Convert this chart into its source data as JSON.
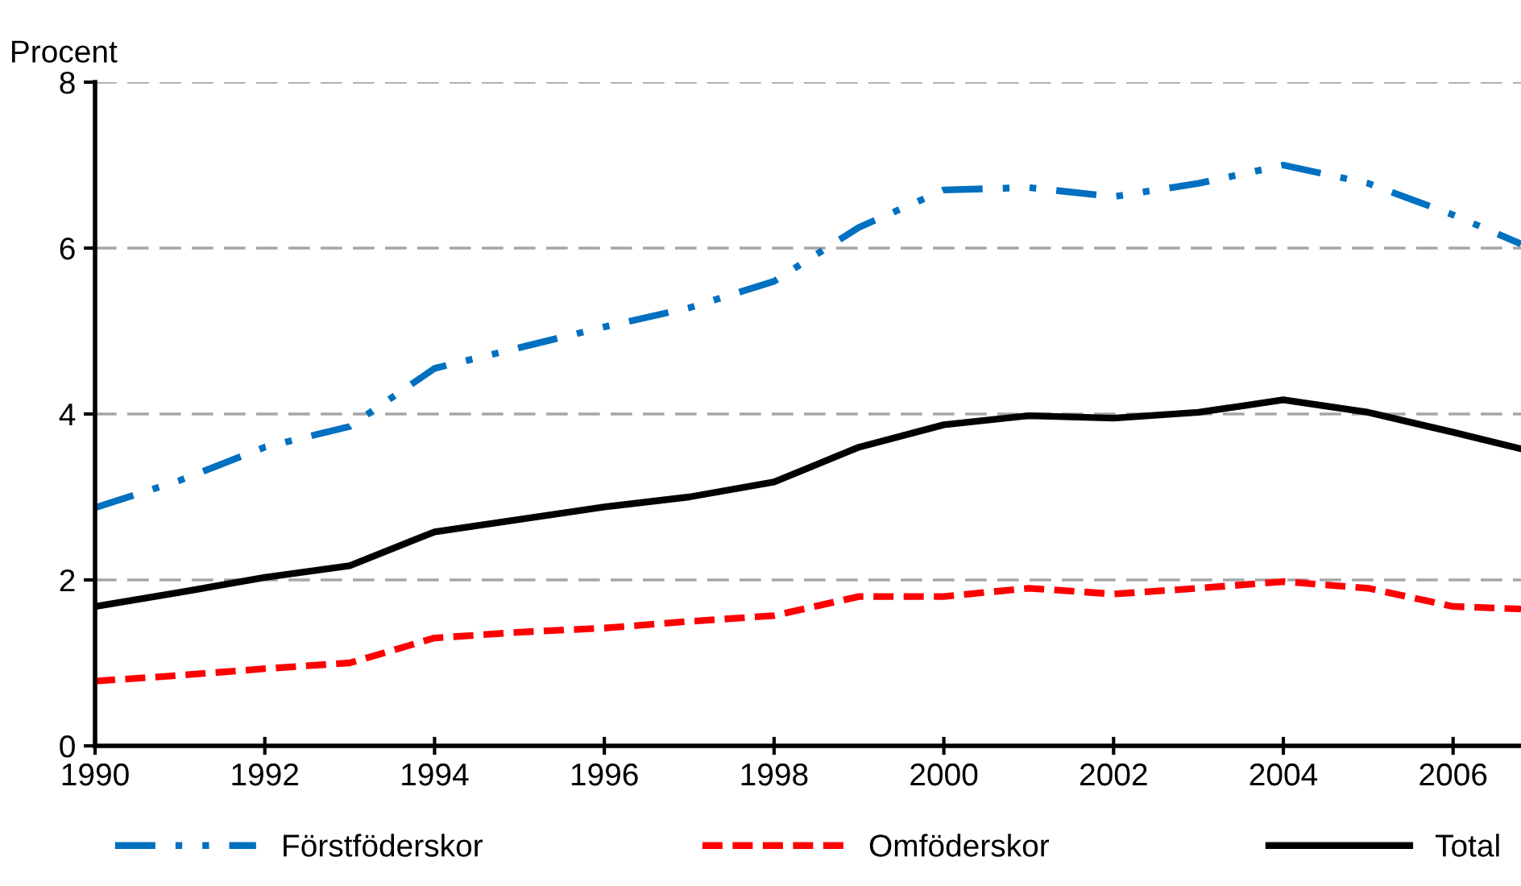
{
  "chart_data": {
    "type": "line",
    "ylabel": "Procent",
    "x": [
      1990,
      1991,
      1992,
      1993,
      1994,
      1995,
      1996,
      1997,
      1998,
      1999,
      2000,
      2001,
      2002,
      2003,
      2004,
      2005,
      2006,
      2006.8
    ],
    "series": [
      {
        "name": "Förstföderskor",
        "color": "#0070c0",
        "line_style": "dashdot",
        "values": [
          2.87,
          3.2,
          3.6,
          3.85,
          4.55,
          4.8,
          5.05,
          5.28,
          5.6,
          6.25,
          6.7,
          6.73,
          6.62,
          6.78,
          7.0,
          6.78,
          6.4,
          6.05
        ]
      },
      {
        "name": "Omföderskor",
        "color": "#ff0000",
        "line_style": "dashed",
        "values": [
          0.78,
          0.85,
          0.93,
          1.0,
          1.3,
          1.37,
          1.42,
          1.5,
          1.57,
          1.8,
          1.8,
          1.9,
          1.83,
          1.9,
          1.98,
          1.9,
          1.68,
          1.65
        ]
      },
      {
        "name": "Total",
        "color": "#000000",
        "line_style": "solid",
        "values": [
          1.68,
          1.85,
          2.03,
          2.17,
          2.58,
          2.73,
          2.88,
          3.0,
          3.18,
          3.6,
          3.87,
          3.98,
          3.95,
          4.02,
          4.17,
          4.02,
          3.78,
          3.58
        ]
      }
    ],
    "xlim": [
      1990,
      2006.8
    ],
    "xticks": [
      1990,
      1992,
      1994,
      1996,
      1998,
      2000,
      2002,
      2004,
      2006
    ],
    "ylim": [
      0,
      8
    ],
    "yticks": [
      0,
      2,
      4,
      6,
      8
    ],
    "grid": "y",
    "legend": "bottom",
    "marker": "none"
  }
}
